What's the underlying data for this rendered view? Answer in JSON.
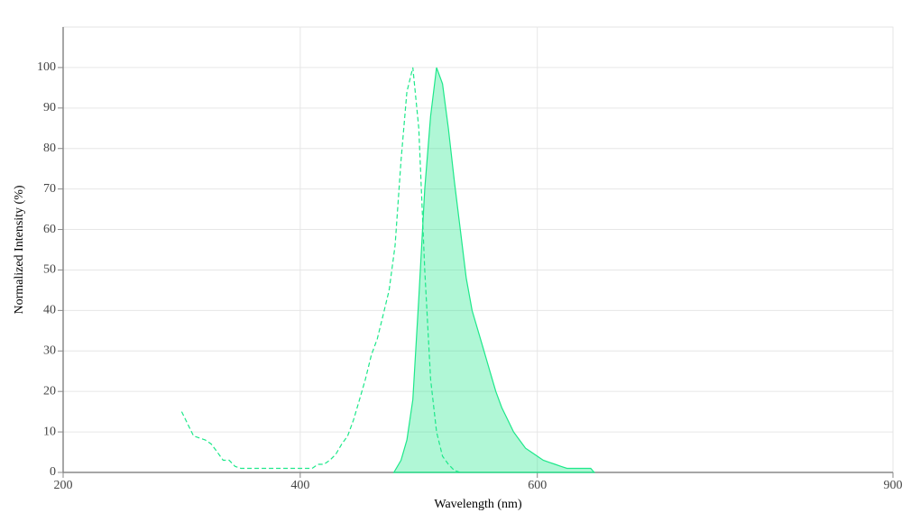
{
  "chart_data": {
    "type": "line",
    "x_label": "Wavelength (nm)",
    "y_label": "Normalized Intensity (%)",
    "xlim": [
      200,
      900
    ],
    "xticks": [
      200,
      400,
      600,
      900
    ],
    "ylim": [
      0,
      110
    ],
    "yticks": [
      0,
      10,
      20,
      30,
      40,
      50,
      60,
      70,
      80,
      90,
      100
    ],
    "grid": true,
    "series": [
      {
        "color": "#1de88a",
        "dashed": true,
        "fill": false,
        "x": [
          300,
          305,
          310,
          315,
          320,
          325,
          330,
          335,
          340,
          345,
          350,
          360,
          370,
          380,
          390,
          400,
          410,
          415,
          420,
          425,
          430,
          435,
          440,
          445,
          450,
          455,
          460,
          465,
          470,
          475,
          480,
          485,
          490,
          495,
          500,
          505,
          510,
          515,
          520,
          525,
          530,
          535
        ],
        "values": [
          15,
          12,
          9,
          8.5,
          8,
          7,
          5,
          3,
          3,
          1.5,
          1,
          1,
          1,
          1,
          1,
          1,
          1,
          2,
          2,
          3,
          4.5,
          7,
          9,
          13,
          18,
          23,
          29,
          33,
          39,
          45,
          56,
          77,
          94,
          100,
          85,
          50,
          23,
          10,
          4,
          2,
          0.5,
          0
        ]
      },
      {
        "color": "#1de88a",
        "dashed": false,
        "fill": true,
        "x": [
          479,
          485,
          490,
          495,
          500,
          505,
          510,
          515,
          520,
          525,
          530,
          535,
          540,
          545,
          550,
          555,
          560,
          565,
          570,
          575,
          580,
          585,
          590,
          595,
          600,
          605,
          610,
          615,
          620,
          625,
          630,
          635,
          640,
          645,
          648
        ],
        "values": [
          0,
          3,
          8,
          18,
          43,
          70,
          88,
          100,
          96,
          85,
          72,
          60,
          48,
          40,
          35,
          30,
          25,
          20,
          16,
          13,
          10,
          8,
          6,
          5,
          4,
          3,
          2.5,
          2,
          1.5,
          1,
          1,
          1,
          1,
          1,
          0
        ]
      }
    ]
  }
}
